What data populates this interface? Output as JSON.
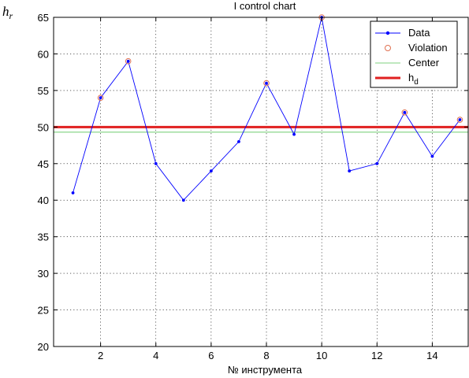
{
  "chart_data": {
    "type": "line",
    "title": "I control chart",
    "xlabel": "№ инструмента",
    "ylabel": "h",
    "ylabel_sub": "r",
    "xlim": [
      0.3,
      15.3
    ],
    "ylim": [
      20,
      65
    ],
    "xticks": [
      2,
      4,
      6,
      8,
      10,
      12,
      14
    ],
    "yticks": [
      20,
      25,
      30,
      35,
      40,
      45,
      50,
      55,
      60,
      65
    ],
    "grid": true,
    "legend_position": "top-right",
    "x": [
      1,
      2,
      3,
      4,
      5,
      6,
      7,
      8,
      9,
      10,
      11,
      12,
      13,
      14,
      15
    ],
    "series": [
      {
        "name": "Data",
        "color": "#0000ff",
        "marker": "dot",
        "values": [
          41,
          54,
          59,
          45,
          40,
          44,
          48,
          56,
          49,
          65,
          44,
          45,
          52,
          46,
          51
        ]
      }
    ],
    "violations": {
      "name": "Violation",
      "color": "#e07050",
      "x": [
        2,
        3,
        8,
        10,
        13,
        15
      ],
      "values": [
        54,
        59,
        56,
        65,
        52,
        51
      ]
    },
    "center": {
      "name": "Center",
      "value": 49.3,
      "color": "#7fd07f"
    },
    "hd": {
      "name": "h",
      "name_sub": "d",
      "value": 50,
      "color": "#e02020"
    }
  }
}
